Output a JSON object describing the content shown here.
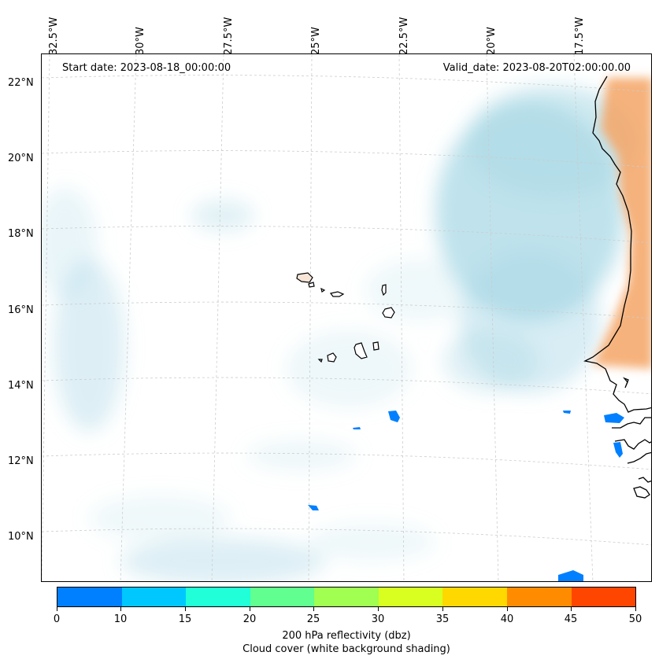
{
  "map": {
    "start_date": "Start date: 2023-08-18_00:00:00",
    "valid_date": "Valid_date: 2023-08-20T02:00:00.00",
    "lon_labels": [
      "32.5°W",
      "30°W",
      "27.5°W",
      "25°W",
      "22.5°W",
      "20°W",
      "17.5°W"
    ],
    "lat_labels": [
      "22°N",
      "20°N",
      "18°N",
      "16°N",
      "14°N",
      "12°N",
      "10°N"
    ],
    "colors": {
      "cloud_light": "#e8f4f8",
      "cloud_blue": "#a9d8e6",
      "desert_orange": "#f4a464",
      "reflectivity_0_10": "#0080ff",
      "coastline": "#000000",
      "grid": "#cccccc"
    }
  },
  "colorbar": {
    "label_line1": "200 hPa reflectivity (dbz)",
    "label_line2": "Cloud cover (white background shading)",
    "ticks": [
      "0",
      "10",
      "15",
      "20",
      "25",
      "30",
      "35",
      "40",
      "45",
      "50"
    ],
    "colors": [
      "#0080ff",
      "#00c8ff",
      "#20ffd8",
      "#60ff90",
      "#a0ff50",
      "#d8ff20",
      "#ffd800",
      "#ff8c00",
      "#ff4600"
    ]
  }
}
